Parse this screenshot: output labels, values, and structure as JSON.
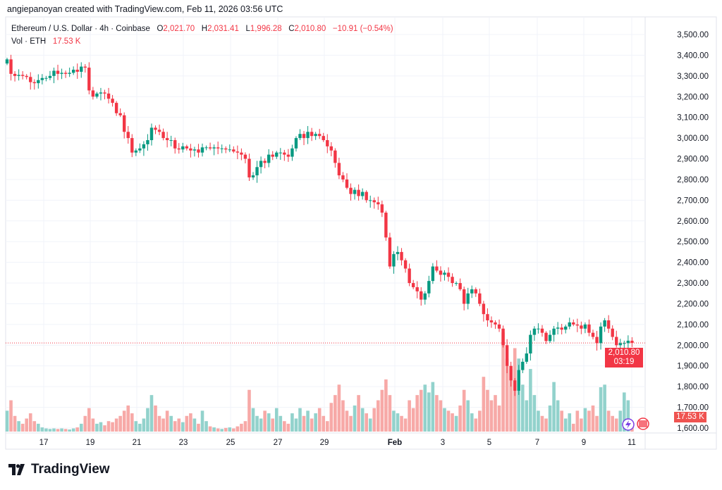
{
  "credit": "angiepanoyan created with TradingView.com, Feb 11, 2026 03:56 UTC",
  "legend": {
    "symbol": "Ethereum / U.S. Dollar · 4h · Coinbase",
    "o_label": "O",
    "o": "2,021.70",
    "h_label": "H",
    "h": "2,031.41",
    "l_label": "L",
    "l": "1,996.28",
    "c_label": "C",
    "c": "2,010.80",
    "change": "−10.91 (−0.54%)",
    "vol_label": "Vol · ETH",
    "vol": "17.53 K"
  },
  "price_tag": {
    "price": "2,010.80",
    "countdown": "03:19"
  },
  "volume_tag": "17.53 K",
  "logo": "TradingView",
  "colors": {
    "up": "#089981",
    "down": "#f23645",
    "up_vol": "#92d2cc",
    "down_vol": "#f7a9a7"
  },
  "chart_data": {
    "type": "candlestick",
    "symbol": "ETHUSD",
    "interval": "4h",
    "ylim": [
      1570,
      3560
    ],
    "y_ticks": [
      "3,500.00",
      "3,400.00",
      "3,300.00",
      "3,200.00",
      "3,100.00",
      "3,000.00",
      "2,900.00",
      "2,800.00",
      "2,700.00",
      "2,600.00",
      "2,500.00",
      "2,400.00",
      "2,300.00",
      "2,200.00",
      "2,100.00",
      "2,000.00",
      "1,900.00",
      "1,800.00",
      "1,700.00",
      "1,600.00"
    ],
    "x_ticks": [
      "17",
      "19",
      "21",
      "23",
      "25",
      "27",
      "29",
      "Feb",
      "3",
      "5",
      "7",
      "9",
      "11"
    ],
    "first_open": 3360,
    "closes": [
      3380,
      3310,
      3300,
      3305,
      3300,
      3295,
      3270,
      3265,
      3280,
      3290,
      3290,
      3300,
      3325,
      3310,
      3315,
      3310,
      3315,
      3330,
      3320,
      3345,
      3340,
      3230,
      3200,
      3215,
      3220,
      3215,
      3190,
      3170,
      3120,
      3110,
      3030,
      3000,
      2930,
      2940,
      2950,
      2970,
      2990,
      3050,
      3040,
      3030,
      3000,
      2990,
      2990,
      2950,
      2945,
      2960,
      2950,
      2940,
      2945,
      2930,
      2955,
      2955,
      2950,
      2955,
      2950,
      2950,
      2945,
      2945,
      2935,
      2930,
      2920,
      2900,
      2810,
      2820,
      2860,
      2890,
      2880,
      2920,
      2910,
      2930,
      2930,
      2920,
      2910,
      2950,
      3000,
      3020,
      3000,
      3030,
      3010,
      3020,
      3010,
      2990,
      2960,
      2940,
      2880,
      2820,
      2800,
      2760,
      2730,
      2750,
      2720,
      2740,
      2700,
      2700,
      2690,
      2680,
      2640,
      2520,
      2380,
      2440,
      2450,
      2410,
      2370,
      2300,
      2280,
      2260,
      2220,
      2250,
      2310,
      2380,
      2360,
      2340,
      2350,
      2330,
      2300,
      2300,
      2270,
      2200,
      2250,
      2270,
      2250,
      2200,
      2150,
      2120,
      2110,
      2100,
      2080,
      2000,
      1900,
      1830,
      1780,
      1880,
      1920,
      1960,
      2050,
      2080,
      2080,
      2060,
      2020,
      2050,
      2080,
      2085,
      2075,
      2090,
      2110,
      2100,
      2095,
      2080,
      2100,
      2060,
      2040,
      2010,
      2090,
      2120,
      2080,
      2040,
      2000,
      2010,
      2010,
      2021.7,
      2010.8
    ],
    "volumes_k": [
      40,
      60,
      30,
      20,
      15,
      25,
      35,
      20,
      15,
      8,
      6,
      5,
      6,
      5,
      6,
      5,
      4,
      6,
      8,
      15,
      30,
      45,
      25,
      15,
      18,
      12,
      20,
      18,
      25,
      30,
      40,
      50,
      35,
      20,
      15,
      25,
      45,
      70,
      50,
      30,
      25,
      40,
      30,
      20,
      25,
      18,
      30,
      35,
      25,
      15,
      40,
      20,
      10,
      8,
      6,
      5,
      7,
      8,
      6,
      10,
      15,
      20,
      80,
      45,
      30,
      25,
      40,
      35,
      25,
      45,
      30,
      20,
      15,
      35,
      25,
      45,
      30,
      40,
      25,
      35,
      45,
      30,
      20,
      55,
      70,
      90,
      60,
      40,
      30,
      50,
      70,
      45,
      35,
      25,
      45,
      60,
      80,
      100,
      70,
      40,
      35,
      30,
      25,
      60,
      45,
      70,
      80,
      90,
      75,
      95,
      70,
      60,
      45,
      40,
      35,
      30,
      50,
      80,
      60,
      35,
      25,
      40,
      105,
      80,
      60,
      70,
      50,
      190,
      140,
      120,
      160,
      140,
      90,
      60,
      120,
      70,
      40,
      30,
      25,
      50,
      95,
      60,
      40,
      25,
      35,
      15,
      40,
      25,
      45,
      40,
      50,
      30,
      85,
      90,
      40,
      30,
      25,
      40,
      75,
      60,
      17.53
    ]
  }
}
